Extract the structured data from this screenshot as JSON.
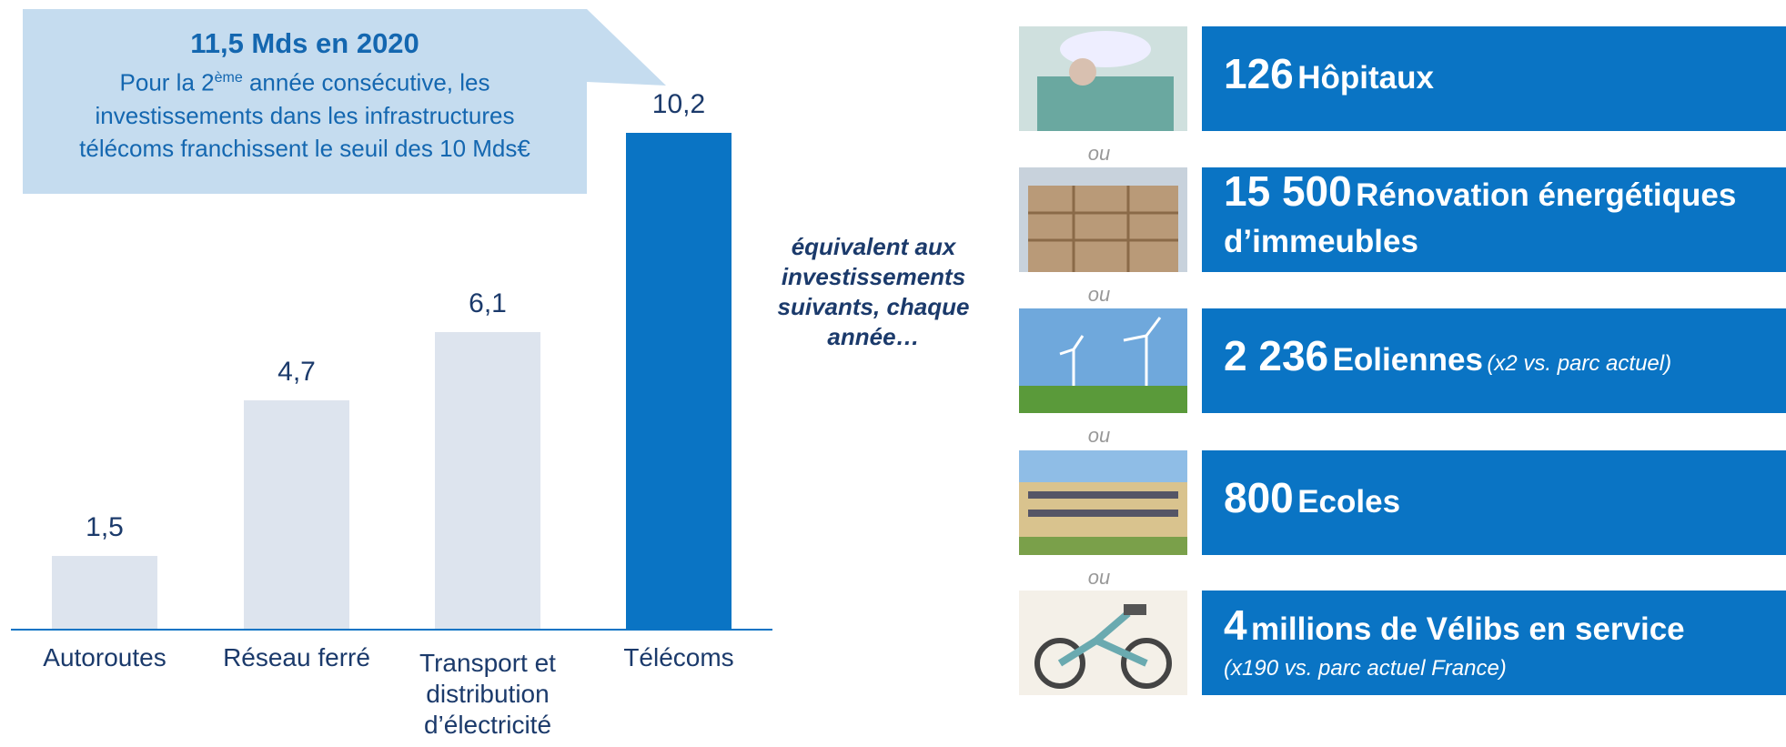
{
  "chart_data": {
    "type": "bar",
    "categories": [
      "Autoroutes",
      "Réseau ferré",
      "Transport et distribution d’électricité",
      "Télécoms"
    ],
    "values": [
      1.5,
      4.7,
      6.1,
      10.2
    ],
    "value_labels": [
      "1,5",
      "4,7",
      "6,1",
      "10,2"
    ],
    "colors": [
      "#dde4ee",
      "#dde4ee",
      "#dde4ee",
      "#0a74c4"
    ]
  },
  "callout": {
    "title": "11,5 Mds en 2020",
    "text_start": "Pour la 2",
    "superscript": "ème",
    "text_end": " année consécutive, les investissements dans les infrastructures télécoms franchissent le seuil des 10 Mds€"
  },
  "middle_text": "équivalent aux investissements suivants, chaque année…",
  "separator": "ou",
  "items": [
    {
      "number": "126",
      "label": "Hôpitaux"
    },
    {
      "number": "15 500",
      "label": "Rénovation énergétiques d’immeubles"
    },
    {
      "number": "2 236",
      "label": "Eoliennes",
      "note": "(x2 vs. parc actuel)"
    },
    {
      "number": "800",
      "label": "Ecoles"
    },
    {
      "number": "4",
      "label": "millions de Vélibs en service",
      "note": "(x190 vs. parc actuel France)"
    }
  ]
}
